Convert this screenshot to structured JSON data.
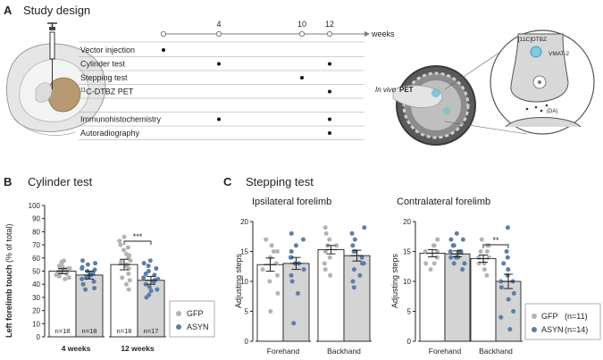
{
  "panel_a": {
    "letter": "A",
    "title": "Study design",
    "weeks_unit": "weeks",
    "timeline_ticks": [
      {
        "label": "",
        "week": 0
      },
      {
        "label": "4",
        "week": 4
      },
      {
        "label": "10",
        "week": 10
      },
      {
        "label": "12",
        "week": 12
      }
    ],
    "procedures": [
      {
        "label": "Vector injection",
        "weeks": [
          0
        ]
      },
      {
        "label": "Cylinder test",
        "weeks": [
          4,
          12
        ]
      },
      {
        "label": "Stepping test",
        "weeks": [
          10
        ]
      },
      {
        "label_prefix": "11",
        "label_main": "C-DTBZ PET",
        "weeks": [
          12
        ]
      },
      {
        "label": "",
        "weeks": []
      },
      {
        "label": "Immunohistochemistry",
        "weeks": [
          4,
          12
        ]
      },
      {
        "label": "Autoradiography",
        "weeks": [
          12
        ]
      }
    ],
    "pet_label_italic": "In vivo",
    "pet_label_bold": "PET",
    "tracer_label": "[11C]DTBZ",
    "vmat_label": "VMAT-2",
    "da_label": "(DA)"
  },
  "colors": {
    "gfp_point": "#b3b3b3",
    "asyn_point": "#5b7fa8",
    "gfp_bar": "#ffffff",
    "asyn_bar": "#d4d4d4",
    "timeline": "#7a7a7a",
    "error_bar": "#222222"
  },
  "chart_data": [
    {
      "id": "cylinder",
      "letter": "B",
      "type": "bar",
      "title": "Cylinder test",
      "ylabel_bold": "Left forelimb touch",
      "ylabel_rest": " (% of total)",
      "ylim": [
        0,
        100
      ],
      "yticks": [
        0,
        10,
        20,
        30,
        40,
        50,
        60,
        70,
        80,
        90,
        100
      ],
      "categories": [
        "4 weeks",
        "12 weeks"
      ],
      "series": [
        {
          "name": "GFP",
          "values": [
            50,
            55
          ],
          "sem": [
            2,
            4
          ],
          "n": [
            "n=18",
            "n=18"
          ],
          "points": [
            [
              44,
              45,
              46,
              47,
              48,
              48,
              49,
              49,
              50,
              50,
              51,
              52,
              52,
              53,
              54,
              56,
              57,
              58
            ],
            [
              36,
              40,
              43,
              45,
              48,
              52,
              54,
              55,
              57,
              58,
              60,
              62,
              63,
              66,
              68,
              70,
              73,
              76
            ]
          ]
        },
        {
          "name": "ASYN",
          "values": [
            47,
            43
          ],
          "sem": [
            3,
            3
          ],
          "n": [
            "n=18",
            "n=17"
          ],
          "points": [
            [
              36,
              37,
              40,
              42,
              44,
              45,
              46,
              47,
              47,
              48,
              49,
              50,
              51,
              52,
              53,
              55,
              56,
              58
            ],
            [
              30,
              32,
              35,
              36,
              38,
              40,
              42,
              43,
              44,
              45,
              47,
              48,
              50,
              52,
              54,
              56,
              58
            ]
          ]
        }
      ],
      "significance": {
        "category_index": 1,
        "label": "***"
      },
      "legend": [
        "GFP",
        "ASYN"
      ]
    },
    {
      "id": "stepping-ipsi",
      "letter": "C",
      "type": "bar",
      "section_title": "Stepping test",
      "title": "Ipsilateral forelimb",
      "ylabel": "Adjusting steps",
      "ylim": [
        0,
        20
      ],
      "yticks": [
        0,
        5,
        10,
        15,
        20
      ],
      "categories": [
        "Forehand",
        "Backhand"
      ],
      "series": [
        {
          "name": "GFP",
          "values": [
            12.8,
            15.3
          ],
          "sem": [
            1.1,
            0.7
          ],
          "points": [
            [
              5,
              8,
              10,
              11,
              12,
              13,
              14,
              15,
              15,
              16,
              17
            ],
            [
              11,
              12,
              13,
              14,
              15,
              16,
              16,
              17,
              18,
              19
            ]
          ]
        },
        {
          "name": "ASYN",
          "values": [
            13.0,
            14.3
          ],
          "sem": [
            1.0,
            0.9
          ],
          "points": [
            [
              3,
              8,
              10,
              11,
              12,
              13,
              13,
              14,
              14,
              15,
              16,
              17,
              18
            ],
            [
              9,
              10,
              11,
              12,
              13,
              13,
              14,
              15,
              15,
              16,
              17,
              18,
              19
            ]
          ]
        }
      ]
    },
    {
      "id": "stepping-contra",
      "type": "bar",
      "title": "Contralateral forelimb",
      "ylabel": "Adjusting steps",
      "ylim": [
        0,
        20
      ],
      "yticks": [
        0,
        5,
        10,
        15,
        20
      ],
      "categories": [
        "Forehand",
        "Backhand"
      ],
      "series": [
        {
          "name": "GFP",
          "values": [
            14.7,
            13.8
          ],
          "sem": [
            0.6,
            0.6
          ],
          "n_label": "(n=11)",
          "points": [
            [
              12,
              13,
              13,
              14,
              14,
              15,
              15,
              16,
              16,
              17,
              17
            ],
            [
              11,
              12,
              13,
              13,
              14,
              14,
              15,
              15,
              16,
              16,
              17
            ]
          ]
        },
        {
          "name": "ASYN",
          "values": [
            14.6,
            10.0
          ],
          "sem": [
            0.5,
            1.2
          ],
          "n_label": "(n=14)",
          "points": [
            [
              12,
              13,
              13,
              14,
              14,
              14,
              15,
              15,
              15,
              16,
              16,
              17,
              17,
              18
            ],
            [
              2,
              4,
              5,
              7,
              8,
              9,
              10,
              10,
              11,
              12,
              13,
              14,
              15,
              19
            ]
          ]
        }
      ],
      "significance": {
        "category_index": 1,
        "label": "**"
      },
      "legend": [
        "GFP",
        "ASYN"
      ]
    }
  ]
}
